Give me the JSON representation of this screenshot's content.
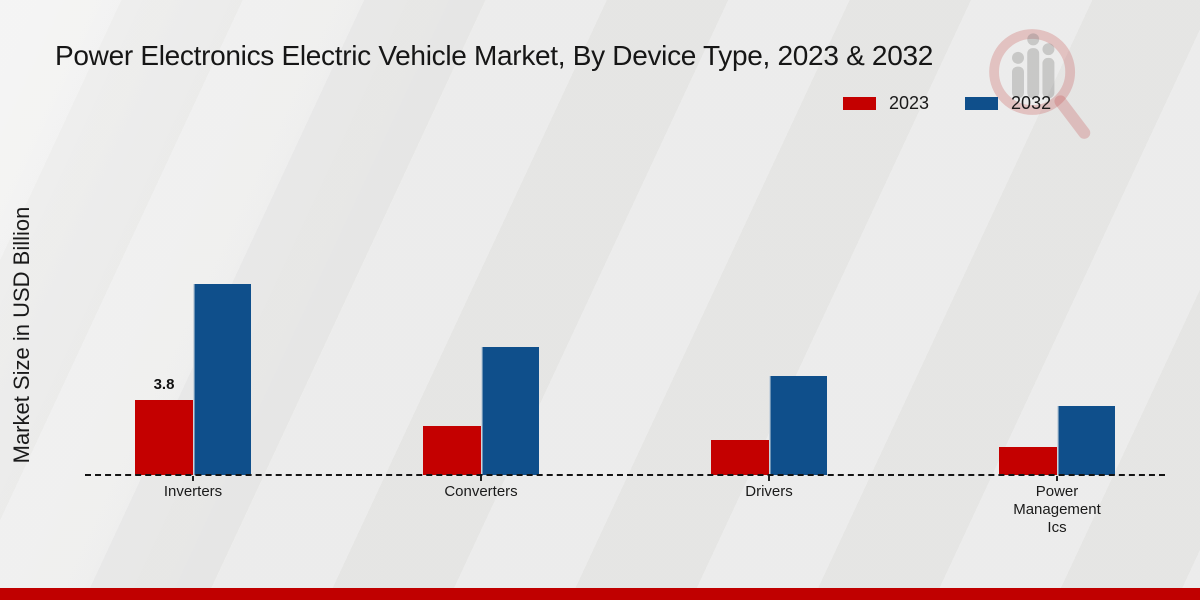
{
  "title": "Power Electronics Electric Vehicle Market, By Device Type, 2023 & 2032",
  "ylabel": "Market Size in USD Billion",
  "legend": [
    {
      "label": "2023",
      "color": "#c40000"
    },
    {
      "label": "2032",
      "color": "#0f4f8b"
    }
  ],
  "watermark_icon": "magnifier-bar-chart-logo",
  "colors": {
    "series_2023": "#c40000",
    "series_2032": "#0f4f8b",
    "bottom_stripe": "#c00000",
    "background": "#e9e9e8",
    "text": "#1a1a1a"
  },
  "chart_data": {
    "type": "bar",
    "title": "Power Electronics Electric Vehicle Market, By Device Type, 2023 & 2032",
    "xlabel": "",
    "ylabel": "Market Size in USD Billion",
    "categories": [
      "Inverters",
      "Converters",
      "Drivers",
      "Power Management Ics"
    ],
    "series": [
      {
        "name": "2023",
        "color": "#c40000",
        "values": [
          3.8,
          2.5,
          1.8,
          1.4
        ],
        "labels": [
          "3.8",
          "",
          "",
          ""
        ]
      },
      {
        "name": "2032",
        "color": "#0f4f8b",
        "values": [
          9.7,
          6.5,
          5.0,
          3.5
        ],
        "labels": [
          "",
          "",
          "",
          ""
        ]
      }
    ],
    "ylim": [
      0,
      10
    ],
    "grid": false,
    "y_axis_ticks_visible": false,
    "baseline_style": "dashed",
    "legend_position": "top-right",
    "data_label_note": "only Inverters 2023 bar shows value label 3.8"
  }
}
